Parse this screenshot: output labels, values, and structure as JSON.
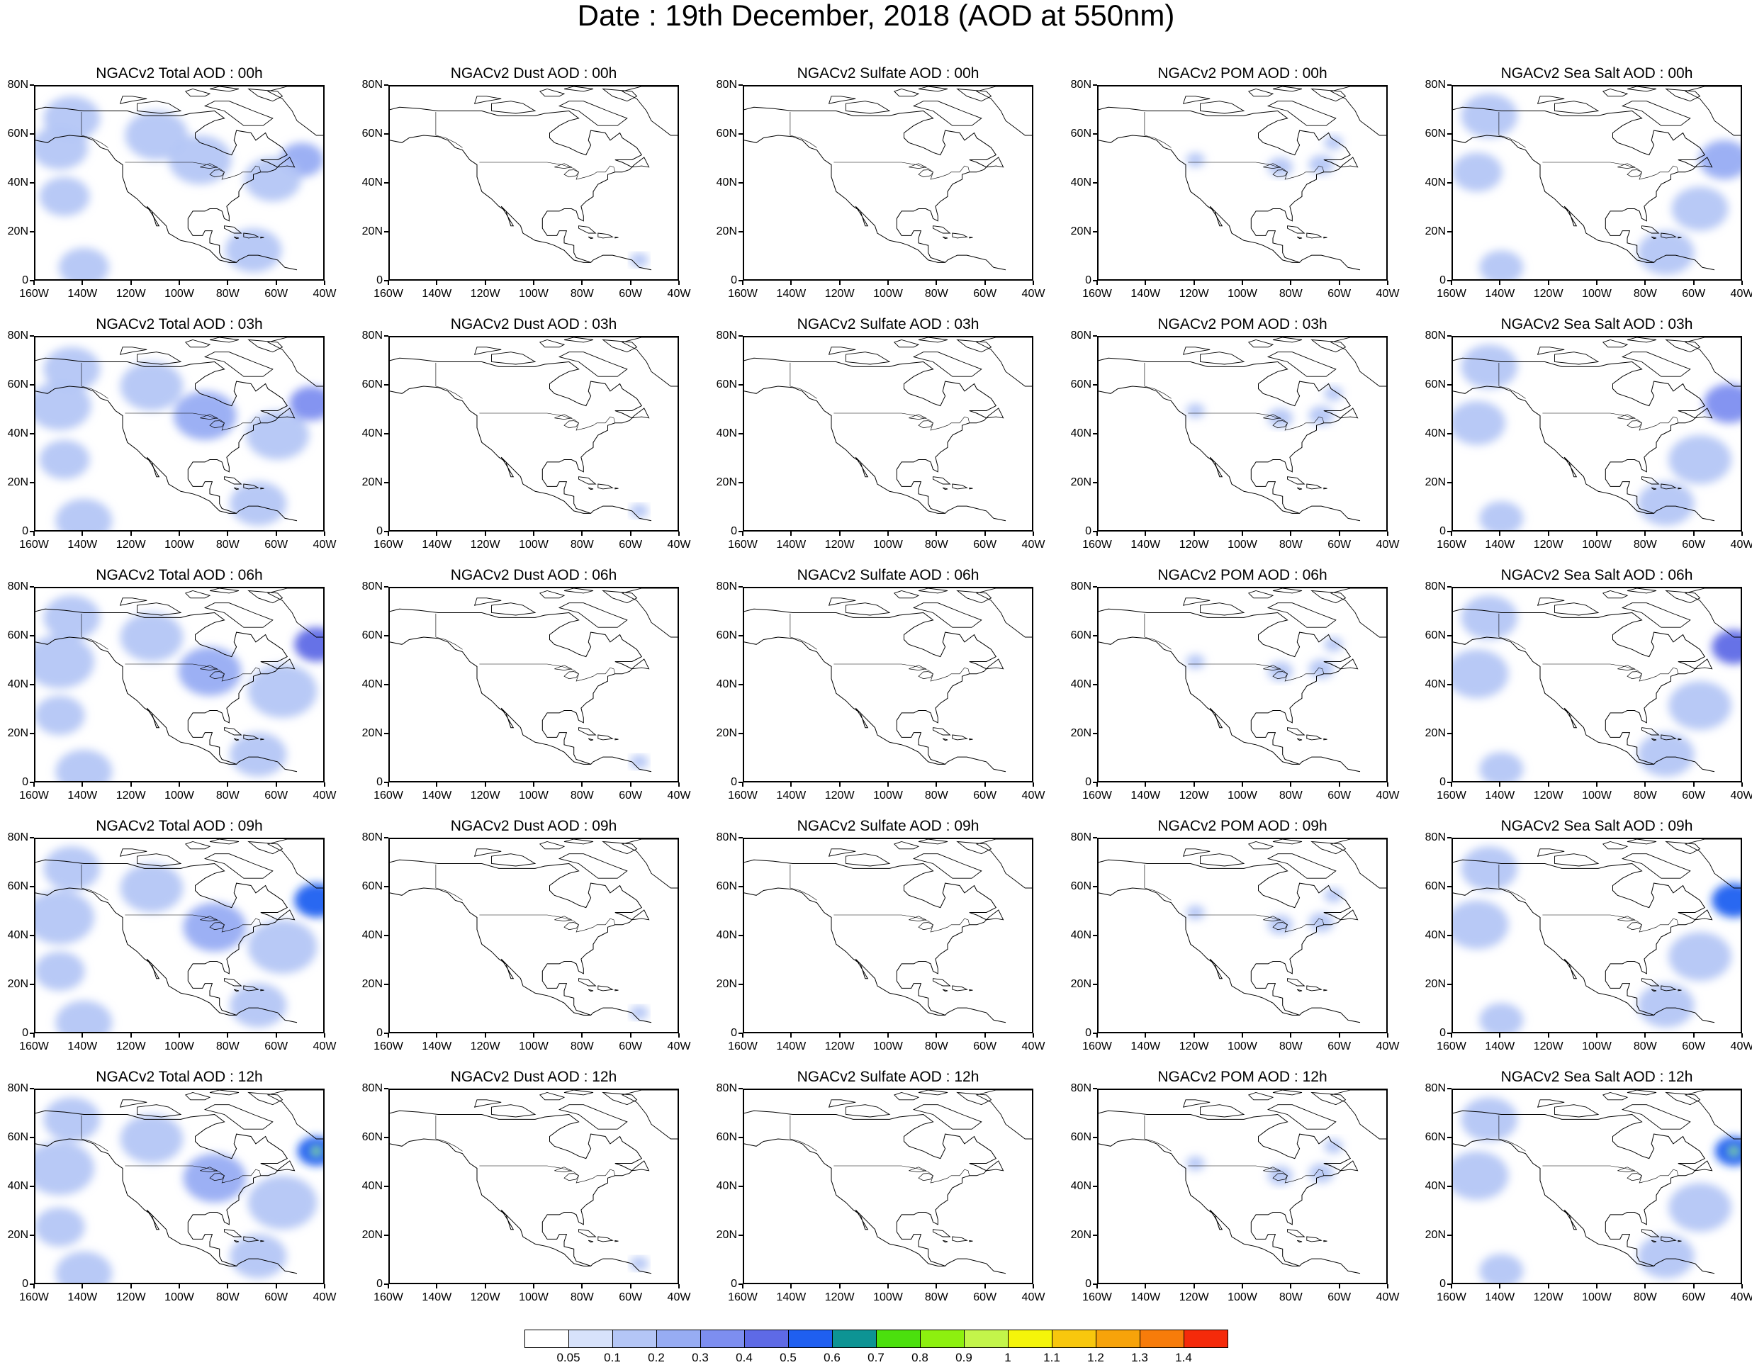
{
  "figure": {
    "title": "Date : 19th December, 2018 (AOD at 550nm)"
  },
  "panel_titles": [
    [
      "NGACv2 Total AOD : 00h",
      "NGACv2 Dust AOD : 00h",
      "NGACv2 Sulfate AOD : 00h",
      "NGACv2 POM AOD : 00h",
      "NGACv2 Sea Salt AOD : 00h"
    ],
    [
      "NGACv2 Total AOD : 03h",
      "NGACv2 Dust AOD : 03h",
      "NGACv2 Sulfate AOD : 03h",
      "NGACv2 POM AOD : 03h",
      "NGACv2 Sea Salt AOD : 03h"
    ],
    [
      "NGACv2 Total AOD : 06h",
      "NGACv2 Dust AOD : 06h",
      "NGACv2 Sulfate AOD : 06h",
      "NGACv2 POM AOD : 06h",
      "NGACv2 Sea Salt AOD : 06h"
    ],
    [
      "NGACv2 Total AOD : 09h",
      "NGACv2 Dust AOD : 09h",
      "NGACv2 Sulfate AOD : 09h",
      "NGACv2 POM AOD : 09h",
      "NGACv2 Sea Salt  AOD : 09h"
    ],
    [
      "NGACv2 Total AOD  : 12h",
      "NGACv2 Dust AOD : 12h",
      "NGACv2 Sulfate AOD : 12h",
      "NGACv2 POM  AOD : 12h",
      "NGACv2 Sea Salt  AOD : 12h"
    ]
  ],
  "axes": {
    "x_ticks": [
      "160W",
      "140W",
      "120W",
      "100W",
      "80W",
      "60W",
      "40W"
    ],
    "y_ticks": [
      "80N",
      "60N",
      "40N",
      "20N",
      "0"
    ],
    "lon_range": [
      -160,
      -40
    ],
    "lat_range": [
      0,
      80
    ]
  },
  "colorbar": {
    "levels": [
      "0.05",
      "0.1",
      "0.2",
      "0.3",
      "0.4",
      "0.5",
      "0.6",
      "0.7",
      "0.8",
      "0.9",
      "1",
      "1.1",
      "1.2",
      "1.3",
      "1.4"
    ],
    "colors": [
      "#ffffff",
      "#d7e2fb",
      "#b4c6f6",
      "#97acf3",
      "#7d8ef0",
      "#5e6ae6",
      "#1f5ff0",
      "#0d9494",
      "#4be00d",
      "#8df00f",
      "#c3f54a",
      "#f5f50a",
      "#f8c70d",
      "#f7a30a",
      "#f77c0a",
      "#f52a0a"
    ]
  },
  "chart_data": {
    "type": "heatmap",
    "title": "Date : 19th December, 2018 (AOD at 550nm)",
    "projection": "cylindrical equidistant",
    "lon_range": [
      -160,
      -40
    ],
    "lat_range": [
      0,
      80
    ],
    "rows_forecast_hour": [
      "00h",
      "03h",
      "06h",
      "09h",
      "12h"
    ],
    "columns_species": [
      "Total",
      "Dust",
      "Sulfate",
      "POM",
      "Sea Salt"
    ],
    "colorbar_levels": [
      0.05,
      0.1,
      0.2,
      0.3,
      0.4,
      0.5,
      0.6,
      0.7,
      0.8,
      0.9,
      1,
      1.1,
      1.2,
      1.3,
      1.4
    ],
    "blobs_note_units": "AOD",
    "fields": {
      "Total": [
        [
          {
            "lon": -145,
            "lat": 67,
            "r": 9,
            "aod": 0.1
          },
          {
            "lon": -150,
            "lat": 55,
            "r": 9,
            "aod": 0.1
          },
          {
            "lon": -148,
            "lat": 35,
            "r": 8,
            "aod": 0.1
          },
          {
            "lon": -92,
            "lat": 50,
            "r": 10,
            "aod": 0.1
          },
          {
            "lon": -50,
            "lat": 50,
            "r": 7,
            "aod": 0.2
          },
          {
            "lon": -62,
            "lat": 42,
            "r": 9,
            "aod": 0.1
          },
          {
            "lon": -110,
            "lat": 60,
            "r": 10,
            "aod": 0.1
          },
          {
            "lon": -70,
            "lat": 13,
            "r": 9,
            "aod": 0.1
          },
          {
            "lon": -140,
            "lat": 6,
            "r": 8,
            "aod": 0.1
          }
        ],
        [
          {
            "lon": -145,
            "lat": 67,
            "r": 9,
            "aod": 0.1
          },
          {
            "lon": -150,
            "lat": 52,
            "r": 10,
            "aod": 0.1
          },
          {
            "lon": -148,
            "lat": 30,
            "r": 8,
            "aod": 0.1
          },
          {
            "lon": -90,
            "lat": 48,
            "r": 10,
            "aod": 0.2
          },
          {
            "lon": -46,
            "lat": 53,
            "r": 7,
            "aod": 0.3
          },
          {
            "lon": -60,
            "lat": 40,
            "r": 10,
            "aod": 0.1
          },
          {
            "lon": -112,
            "lat": 60,
            "r": 10,
            "aod": 0.1
          },
          {
            "lon": -68,
            "lat": 12,
            "r": 9,
            "aod": 0.1
          },
          {
            "lon": -140,
            "lat": 5,
            "r": 9,
            "aod": 0.1
          }
        ],
        [
          {
            "lon": -145,
            "lat": 68,
            "r": 9,
            "aod": 0.1
          },
          {
            "lon": -150,
            "lat": 50,
            "r": 11,
            "aod": 0.1
          },
          {
            "lon": -150,
            "lat": 28,
            "r": 8,
            "aod": 0.1
          },
          {
            "lon": -88,
            "lat": 46,
            "r": 10,
            "aod": 0.2
          },
          {
            "lon": -44,
            "lat": 57,
            "r": 7,
            "aod": 0.4
          },
          {
            "lon": -58,
            "lat": 38,
            "r": 11,
            "aod": 0.1
          },
          {
            "lon": -112,
            "lat": 60,
            "r": 10,
            "aod": 0.1
          },
          {
            "lon": -68,
            "lat": 12,
            "r": 9,
            "aod": 0.1
          },
          {
            "lon": -140,
            "lat": 5,
            "r": 9,
            "aod": 0.1
          }
        ],
        [
          {
            "lon": -145,
            "lat": 68,
            "r": 9,
            "aod": 0.1
          },
          {
            "lon": -150,
            "lat": 48,
            "r": 11,
            "aod": 0.1
          },
          {
            "lon": -150,
            "lat": 26,
            "r": 8,
            "aod": 0.1
          },
          {
            "lon": -86,
            "lat": 44,
            "r": 10,
            "aod": 0.2
          },
          {
            "lon": -44,
            "lat": 55,
            "r": 7,
            "aod": 0.5
          },
          {
            "lon": -58,
            "lat": 36,
            "r": 11,
            "aod": 0.1
          },
          {
            "lon": -112,
            "lat": 60,
            "r": 10,
            "aod": 0.1
          },
          {
            "lon": -68,
            "lat": 12,
            "r": 9,
            "aod": 0.1
          },
          {
            "lon": -140,
            "lat": 5,
            "r": 9,
            "aod": 0.1
          }
        ],
        [
          {
            "lon": -145,
            "lat": 68,
            "r": 9,
            "aod": 0.1
          },
          {
            "lon": -150,
            "lat": 48,
            "r": 11,
            "aod": 0.1
          },
          {
            "lon": -150,
            "lat": 24,
            "r": 8,
            "aod": 0.1
          },
          {
            "lon": -86,
            "lat": 44,
            "r": 10,
            "aod": 0.2
          },
          {
            "lon": -44,
            "lat": 55,
            "r": 6,
            "aod": 0.5
          },
          {
            "lon": -44,
            "lat": 55,
            "r": 1.5,
            "aod": 0.8
          },
          {
            "lon": -58,
            "lat": 34,
            "r": 11,
            "aod": 0.1
          },
          {
            "lon": -112,
            "lat": 60,
            "r": 10,
            "aod": 0.1
          },
          {
            "lon": -68,
            "lat": 12,
            "r": 9,
            "aod": 0.1
          },
          {
            "lon": -140,
            "lat": 5,
            "r": 9,
            "aod": 0.1
          }
        ]
      ],
      "Dust": [
        [
          {
            "lon": -57,
            "lat": 9,
            "r": 3,
            "aod": 0.1
          }
        ],
        [
          {
            "lon": -57,
            "lat": 9,
            "r": 3,
            "aod": 0.1
          }
        ],
        [
          {
            "lon": -57,
            "lat": 9,
            "r": 3,
            "aod": 0.1
          }
        ],
        [
          {
            "lon": -57,
            "lat": 9,
            "r": 3,
            "aod": 0.1
          }
        ],
        [
          {
            "lon": -57,
            "lat": 9,
            "r": 3,
            "aod": 0.1
          }
        ]
      ],
      "Sulfate": [
        [],
        [],
        [],
        [],
        []
      ],
      "POM": [
        [
          {
            "lon": -63,
            "lat": 57,
            "r": 3,
            "aod": 0.1
          },
          {
            "lon": -120,
            "lat": 50,
            "r": 3,
            "aod": 0.1
          },
          {
            "lon": -85,
            "lat": 47,
            "r": 4,
            "aod": 0.1
          },
          {
            "lon": -68,
            "lat": 48,
            "r": 4,
            "aod": 0.1
          }
        ],
        [
          {
            "lon": -63,
            "lat": 57,
            "r": 3,
            "aod": 0.1
          },
          {
            "lon": -120,
            "lat": 50,
            "r": 3,
            "aod": 0.1
          },
          {
            "lon": -85,
            "lat": 47,
            "r": 4,
            "aod": 0.1
          },
          {
            "lon": -68,
            "lat": 48,
            "r": 4,
            "aod": 0.1
          }
        ],
        [
          {
            "lon": -63,
            "lat": 57,
            "r": 3,
            "aod": 0.1
          },
          {
            "lon": -120,
            "lat": 50,
            "r": 3,
            "aod": 0.1
          },
          {
            "lon": -85,
            "lat": 46,
            "r": 4,
            "aod": 0.1
          },
          {
            "lon": -68,
            "lat": 47,
            "r": 4,
            "aod": 0.1
          }
        ],
        [
          {
            "lon": -63,
            "lat": 57,
            "r": 3,
            "aod": 0.1
          },
          {
            "lon": -120,
            "lat": 50,
            "r": 3,
            "aod": 0.1
          },
          {
            "lon": -85,
            "lat": 45,
            "r": 4,
            "aod": 0.1
          },
          {
            "lon": -68,
            "lat": 46,
            "r": 4,
            "aod": 0.1
          }
        ],
        [
          {
            "lon": -63,
            "lat": 57,
            "r": 3,
            "aod": 0.1
          },
          {
            "lon": -120,
            "lat": 50,
            "r": 3,
            "aod": 0.1
          },
          {
            "lon": -85,
            "lat": 45,
            "r": 4,
            "aod": 0.1
          },
          {
            "lon": -68,
            "lat": 46,
            "r": 4,
            "aod": 0.1
          }
        ]
      ],
      "Sea Salt": [
        [
          {
            "lon": -145,
            "lat": 68,
            "r": 9,
            "aod": 0.1
          },
          {
            "lon": -150,
            "lat": 45,
            "r": 8,
            "aod": 0.1
          },
          {
            "lon": -48,
            "lat": 50,
            "r": 8,
            "aod": 0.2
          },
          {
            "lon": -58,
            "lat": 30,
            "r": 9,
            "aod": 0.1
          },
          {
            "lon": -72,
            "lat": 12,
            "r": 9,
            "aod": 0.1
          },
          {
            "lon": -140,
            "lat": 6,
            "r": 7,
            "aod": 0.1
          }
        ],
        [
          {
            "lon": -145,
            "lat": 68,
            "r": 9,
            "aod": 0.1
          },
          {
            "lon": -150,
            "lat": 45,
            "r": 9,
            "aod": 0.1
          },
          {
            "lon": -46,
            "lat": 53,
            "r": 8,
            "aod": 0.3
          },
          {
            "lon": -58,
            "lat": 30,
            "r": 10,
            "aod": 0.1
          },
          {
            "lon": -72,
            "lat": 12,
            "r": 9,
            "aod": 0.1
          },
          {
            "lon": -140,
            "lat": 6,
            "r": 7,
            "aod": 0.1
          }
        ],
        [
          {
            "lon": -145,
            "lat": 68,
            "r": 9,
            "aod": 0.1
          },
          {
            "lon": -150,
            "lat": 45,
            "r": 10,
            "aod": 0.1
          },
          {
            "lon": -44,
            "lat": 56,
            "r": 7,
            "aod": 0.4
          },
          {
            "lon": -58,
            "lat": 32,
            "r": 10,
            "aod": 0.1
          },
          {
            "lon": -72,
            "lat": 12,
            "r": 9,
            "aod": 0.1
          },
          {
            "lon": -140,
            "lat": 6,
            "r": 7,
            "aod": 0.1
          }
        ],
        [
          {
            "lon": -145,
            "lat": 68,
            "r": 9,
            "aod": 0.1
          },
          {
            "lon": -150,
            "lat": 45,
            "r": 10,
            "aod": 0.1
          },
          {
            "lon": -44,
            "lat": 55,
            "r": 7,
            "aod": 0.5
          },
          {
            "lon": -58,
            "lat": 32,
            "r": 10,
            "aod": 0.1
          },
          {
            "lon": -72,
            "lat": 12,
            "r": 9,
            "aod": 0.1
          },
          {
            "lon": -140,
            "lat": 6,
            "r": 7,
            "aod": 0.1
          }
        ],
        [
          {
            "lon": -145,
            "lat": 68,
            "r": 9,
            "aod": 0.1
          },
          {
            "lon": -150,
            "lat": 45,
            "r": 10,
            "aod": 0.1
          },
          {
            "lon": -44,
            "lat": 55,
            "r": 6,
            "aod": 0.5
          },
          {
            "lon": -44,
            "lat": 55,
            "r": 1.5,
            "aod": 0.8
          },
          {
            "lon": -58,
            "lat": 32,
            "r": 10,
            "aod": 0.1
          },
          {
            "lon": -72,
            "lat": 12,
            "r": 9,
            "aod": 0.1
          },
          {
            "lon": -140,
            "lat": 6,
            "r": 7,
            "aod": 0.1
          }
        ]
      ]
    }
  }
}
